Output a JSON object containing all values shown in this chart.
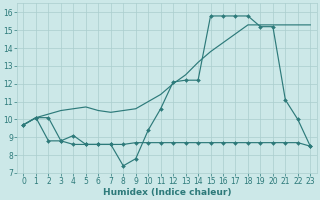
{
  "xlabel": "Humidex (Indice chaleur)",
  "x": [
    0,
    1,
    2,
    3,
    4,
    5,
    6,
    7,
    8,
    9,
    10,
    11,
    12,
    13,
    14,
    15,
    16,
    17,
    18,
    19,
    20,
    21,
    22,
    23
  ],
  "line1_y": [
    9.7,
    10.1,
    10.1,
    8.8,
    9.1,
    8.6,
    8.6,
    8.6,
    7.4,
    7.8,
    9.4,
    10.6,
    12.1,
    12.2,
    12.2,
    15.8,
    15.8,
    15.8,
    15.8,
    15.2,
    15.2,
    11.1,
    10.0,
    8.5
  ],
  "line2_y": [
    9.7,
    10.1,
    10.3,
    10.5,
    10.6,
    10.7,
    10.5,
    10.4,
    10.5,
    10.6,
    11.0,
    11.4,
    12.0,
    12.5,
    13.2,
    13.8,
    14.3,
    14.8,
    15.3,
    15.3,
    15.3,
    15.3,
    15.3,
    15.3
  ],
  "line3_y": [
    9.7,
    10.1,
    8.8,
    8.8,
    8.6,
    8.6,
    8.6,
    8.6,
    8.6,
    8.7,
    8.7,
    8.7,
    8.7,
    8.7,
    8.7,
    8.7,
    8.7,
    8.7,
    8.7,
    8.7,
    8.7,
    8.7,
    8.7,
    8.5
  ],
  "color": "#2d7a7a",
  "bg_color": "#cce8e8",
  "grid_color": "#aacece",
  "ylim": [
    7.0,
    16.5
  ],
  "yticks": [
    7,
    8,
    9,
    10,
    11,
    12,
    13,
    14,
    15,
    16
  ],
  "xticks": [
    0,
    1,
    2,
    3,
    4,
    5,
    6,
    7,
    8,
    9,
    10,
    11,
    12,
    13,
    14,
    15,
    16,
    17,
    18,
    19,
    20,
    21,
    22,
    23
  ],
  "marker_size": 2.0,
  "line_width": 0.85,
  "tick_fontsize": 5.5,
  "xlabel_fontsize": 6.5
}
